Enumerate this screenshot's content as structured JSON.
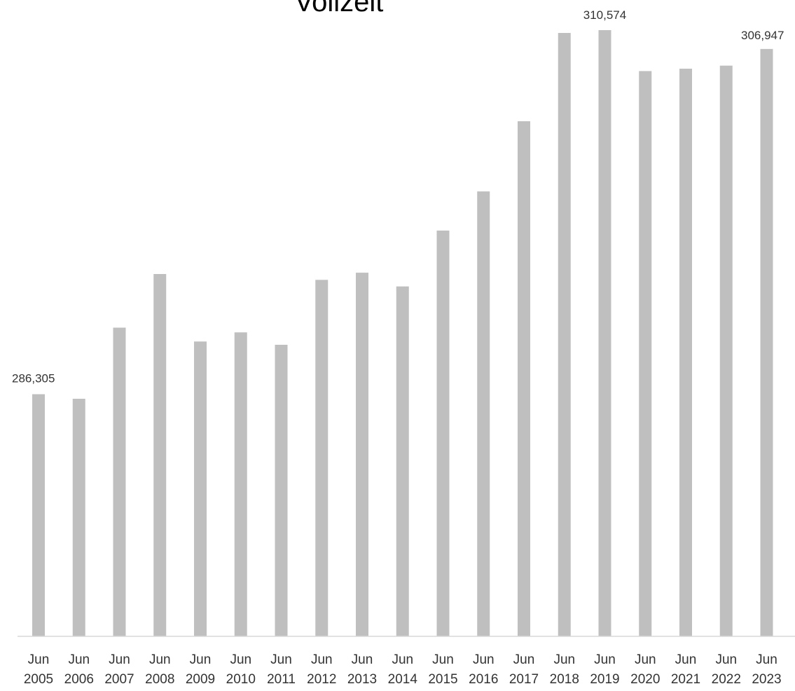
{
  "chart_data": {
    "type": "bar",
    "title": "Vollzeit",
    "categories": [
      "Jun 2005",
      "Jun 2006",
      "Jun 2007",
      "Jun 2008",
      "Jun 2009",
      "Jun 2010",
      "Jun 2011",
      "Jun 2012",
      "Jun 2013",
      "Jun 2014",
      "Jun 2015",
      "Jun 2016",
      "Jun 2017",
      "Jun 2018",
      "Jun 2019",
      "Jun 2020",
      "Jun 2021",
      "Jun 2022",
      "Jun 2023"
    ],
    "series": [
      {
        "values": [
          286305,
          286180,
          288130,
          289600,
          287750,
          288000,
          287660,
          289440,
          289630,
          289260,
          290580,
          291450,
          293010,
          310030,
          310574,
          302680,
          303140,
          303730,
          306947
        ],
        "color": "#bfbfbf"
      }
    ],
    "data_labels": [
      {
        "index": 0,
        "text": "286,305"
      },
      {
        "index": 14,
        "text": "310,574"
      },
      {
        "index": 18,
        "text": "306,947"
      }
    ],
    "xlabel": "",
    "ylabel": "",
    "y_axis": "broken",
    "grid": false,
    "legend": "none"
  }
}
